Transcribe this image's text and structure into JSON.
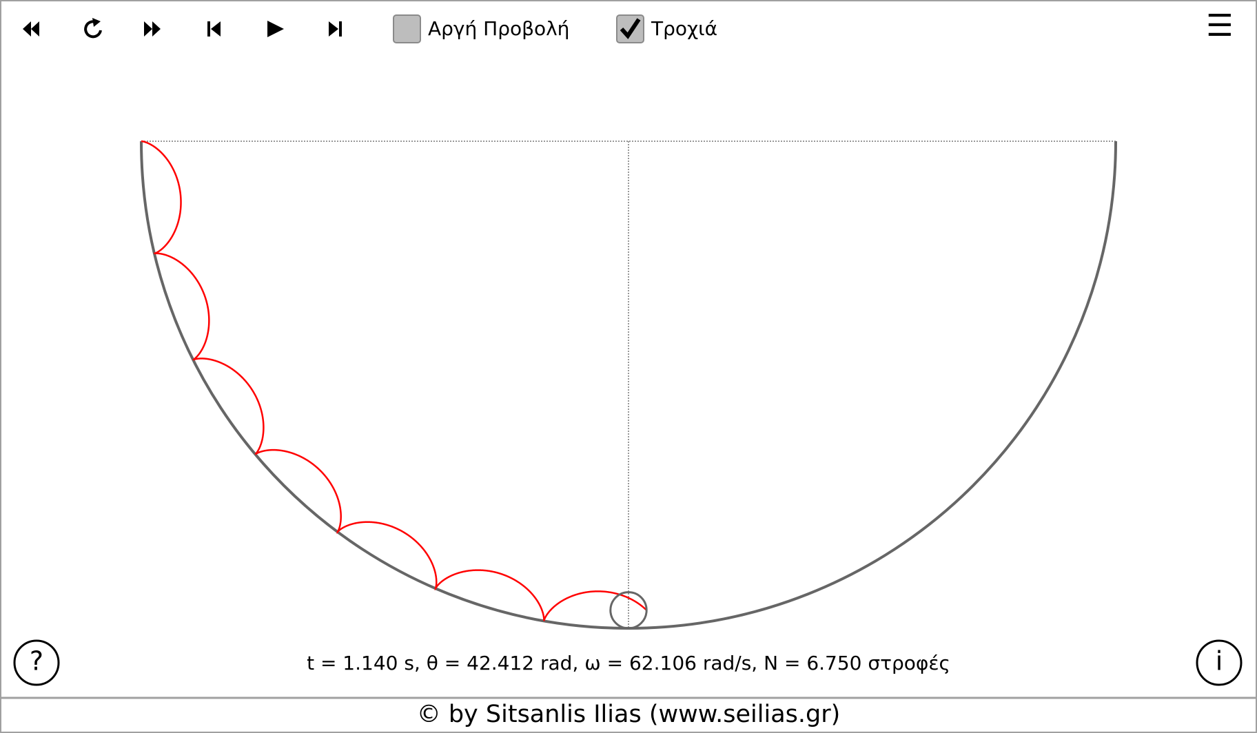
{
  "toolbar": {
    "slow_motion": {
      "label": "Αργή Προβολή",
      "checked": false
    },
    "trajectory": {
      "label": "Τροχιά",
      "checked": true
    }
  },
  "menu": "☰",
  "help": "?",
  "info": "i",
  "status": "t = 1.140 s, θ = 42.412 rad, ω = 62.106 rad/s, N = 6.750 στροφές",
  "footer": "© by Sitsanlis Ilias (www.seilias.gr)"
}
